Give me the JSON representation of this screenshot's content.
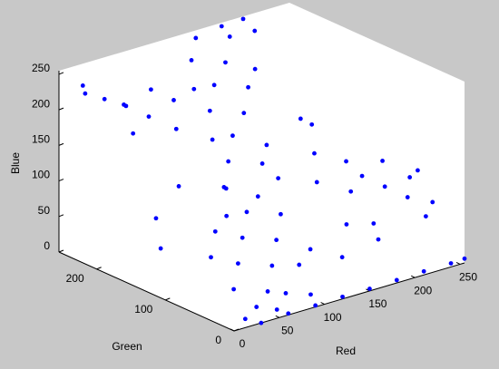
{
  "chart_data": {
    "type": "scatter3d",
    "xlabel": "Red",
    "ylabel": "Green",
    "zlabel": "Blue",
    "color": "#0000ff",
    "x": [
      20,
      40,
      60,
      30,
      80,
      50,
      100,
      70,
      120,
      90,
      60,
      110,
      140,
      80,
      130,
      100,
      150,
      120,
      90,
      140,
      110,
      160,
      130,
      100,
      150,
      120,
      170,
      140,
      200,
      180,
      60,
      200,
      180,
      160,
      170,
      150,
      190,
      130,
      40,
      30,
      20,
      50,
      70,
      90,
      110,
      200,
      180,
      230,
      240,
      250,
      220,
      235,
      245,
      210,
      200,
      190,
      225,
      10,
      30,
      20,
      40,
      15,
      50,
      25,
      30,
      60,
      90,
      120,
      150,
      180,
      210,
      240,
      255,
      20,
      10,
      80,
      100,
      55,
      160,
      190
    ],
    "y": [
      10,
      20,
      30,
      40,
      50,
      60,
      70,
      80,
      90,
      100,
      90,
      110,
      120,
      120,
      130,
      140,
      150,
      160,
      150,
      170,
      180,
      190,
      200,
      190,
      210,
      220,
      230,
      240,
      250,
      255,
      200,
      150,
      120,
      90,
      60,
      40,
      80,
      60,
      80,
      120,
      60,
      150,
      180,
      130,
      50,
      100,
      140,
      50,
      60,
      40,
      70,
      30,
      55,
      90,
      60,
      40,
      80,
      230,
      200,
      215,
      210,
      240,
      190,
      180,
      0,
      0,
      0,
      0,
      0,
      0,
      0,
      0,
      0,
      140,
      120,
      30,
      20,
      10,
      180,
      220
    ],
    "z": [
      5,
      10,
      20,
      30,
      40,
      50,
      60,
      70,
      80,
      90,
      100,
      100,
      110,
      120,
      130,
      140,
      140,
      160,
      170,
      180,
      190,
      200,
      210,
      220,
      230,
      240,
      250,
      255,
      255,
      250,
      230,
      150,
      130,
      110,
      60,
      30,
      90,
      40,
      90,
      140,
      70,
      200,
      220,
      110,
      30,
      120,
      170,
      80,
      100,
      70,
      90,
      60,
      110,
      100,
      50,
      40,
      120,
      230,
      220,
      225,
      210,
      235,
      200,
      190,
      0,
      2,
      2,
      3,
      3,
      4,
      5,
      5,
      6,
      90,
      60,
      10,
      5,
      5,
      230,
      255
    ],
    "xlim": [
      0,
      255
    ],
    "ylim": [
      0,
      255
    ],
    "zlim": [
      0,
      255
    ],
    "xticks": [
      0,
      50,
      100,
      150,
      200,
      250
    ],
    "yticks": [
      0,
      100,
      200
    ],
    "zticks": [
      0,
      50,
      100,
      150,
      200,
      250
    ],
    "grid": false
  }
}
